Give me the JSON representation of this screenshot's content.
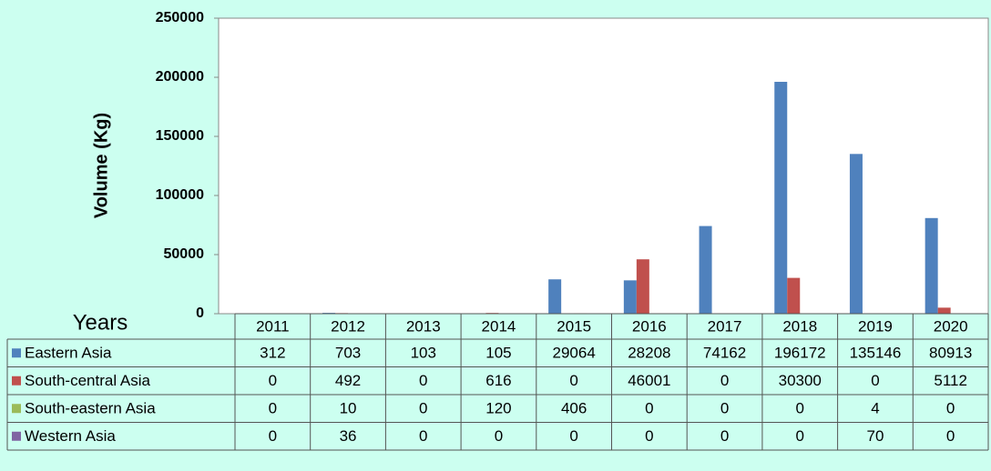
{
  "chart_data": {
    "type": "bar",
    "y_label": "Volume (Kg)",
    "x_label": "Years",
    "categories": [
      "2011",
      "2012",
      "2013",
      "2014",
      "2015",
      "2016",
      "2017",
      "2018",
      "2019",
      "2020"
    ],
    "series": [
      {
        "name": "Eastern Asia",
        "color": "#4f81bd",
        "values": [
          312,
          703,
          103,
          105,
          29064,
          28208,
          74162,
          196172,
          135146,
          80913
        ]
      },
      {
        "name": "South-central Asia",
        "color": "#c0504d",
        "values": [
          0,
          492,
          0,
          616,
          0,
          46001,
          0,
          30300,
          0,
          5112
        ]
      },
      {
        "name": "South-eastern Asia",
        "color": "#9bbb59",
        "values": [
          0,
          10,
          0,
          120,
          406,
          0,
          0,
          0,
          4,
          0
        ]
      },
      {
        "name": "Western Asia",
        "color": "#8064a2",
        "values": [
          0,
          36,
          0,
          0,
          0,
          0,
          0,
          0,
          70,
          0
        ]
      }
    ],
    "ylim": [
      0,
      250000
    ],
    "yticks": [
      0,
      50000,
      100000,
      150000,
      200000,
      250000
    ],
    "grid": false
  }
}
